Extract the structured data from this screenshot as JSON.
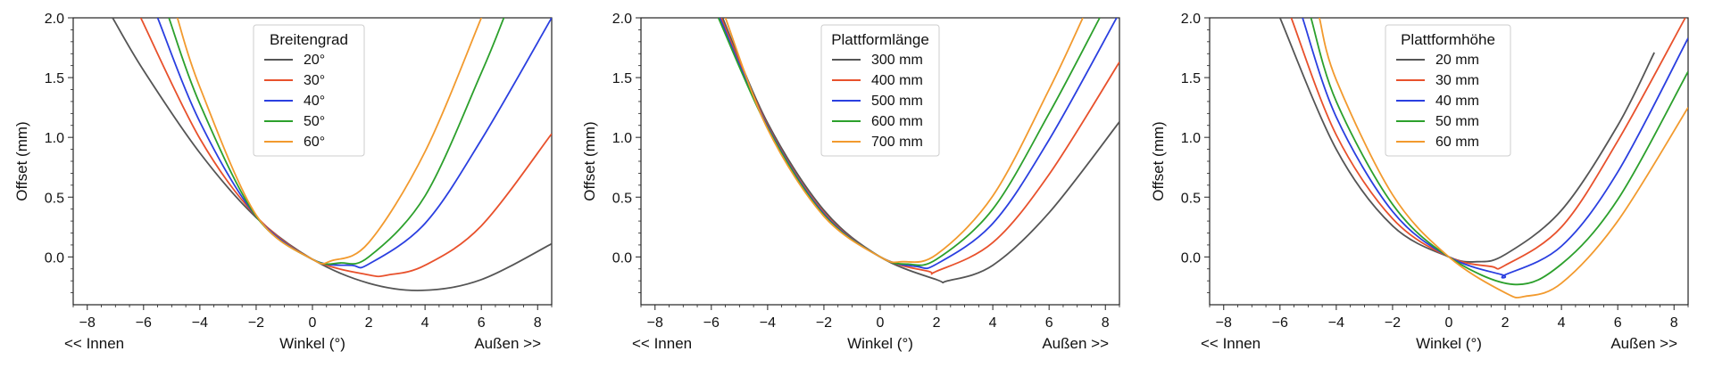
{
  "chart_data": [
    {
      "type": "line",
      "title": "",
      "xlabel": "Winkel (°)",
      "ylabel": "Offset (mm)",
      "x_left_note": "<< Innen",
      "x_right_note": "Außen >>",
      "xlim": [
        -8.5,
        8.5
      ],
      "ylim": [
        -0.4,
        2.0
      ],
      "xticks": [
        -8,
        -6,
        -4,
        -2,
        0,
        2,
        4,
        6,
        8
      ],
      "yticks": [
        0.0,
        0.5,
        1.0,
        1.5,
        2.0
      ],
      "xtick_labels": [
        "−8",
        "−6",
        "−4",
        "−2",
        "0",
        "2",
        "4",
        "6",
        "8"
      ],
      "ytick_labels": [
        "0.0",
        "0.5",
        "1.0",
        "1.5",
        "2.0"
      ],
      "legend_title": "Breitengrad",
      "legend_position": "top-center",
      "series": [
        {
          "name": "20°",
          "color": "#555555",
          "x": [
            -7.1,
            -6,
            -4,
            -2,
            0,
            2,
            3.9,
            6,
            8.5
          ],
          "y": [
            2.0,
            1.56,
            0.87,
            0.33,
            -0.02,
            -0.22,
            -0.28,
            -0.19,
            0.11
          ]
        },
        {
          "name": "30°",
          "color": "#e8512c",
          "x": [
            -6.1,
            -4,
            -2,
            0,
            2,
            2.7,
            4,
            6,
            8.5
          ],
          "y": [
            2.0,
            0.99,
            0.34,
            -0.02,
            -0.15,
            -0.15,
            -0.07,
            0.26,
            1.03
          ]
        },
        {
          "name": "40°",
          "color": "#2a3fe0",
          "x": [
            -5.5,
            -4,
            -2,
            0,
            1.4,
            2,
            4,
            6,
            8.5
          ],
          "y": [
            2.0,
            1.13,
            0.34,
            -0.02,
            -0.07,
            -0.06,
            0.28,
            0.98,
            2.0
          ]
        },
        {
          "name": "50°",
          "color": "#2ca02c",
          "x": [
            -5.1,
            -4,
            -2,
            0,
            1.0,
            2,
            4,
            6,
            6.8
          ],
          "y": [
            2.0,
            1.28,
            0.34,
            -0.02,
            -0.05,
            0.0,
            0.51,
            1.54,
            2.0
          ]
        },
        {
          "name": "60°",
          "color": "#f29a2e",
          "x": [
            -4.8,
            -4,
            -2,
            0,
            0.7,
            2,
            4,
            6,
            6.0
          ],
          "y": [
            2.0,
            1.42,
            0.35,
            -0.02,
            -0.03,
            0.12,
            0.88,
            2.0,
            2.0
          ]
        }
      ]
    },
    {
      "type": "line",
      "title": "",
      "xlabel": "Winkel (°)",
      "ylabel": "Offset (mm)",
      "x_left_note": "<< Innen",
      "x_right_note": "Außen >>",
      "xlim": [
        -8.5,
        8.5
      ],
      "ylim": [
        -0.4,
        2.0
      ],
      "xticks": [
        -8,
        -6,
        -4,
        -2,
        0,
        2,
        4,
        6,
        8
      ],
      "yticks": [
        0.0,
        0.5,
        1.0,
        1.5,
        2.0
      ],
      "xtick_labels": [
        "−8",
        "−6",
        "−4",
        "−2",
        "0",
        "2",
        "4",
        "6",
        "8"
      ],
      "ytick_labels": [
        "0.0",
        "0.5",
        "1.0",
        "1.5",
        "2.0"
      ],
      "legend_title": "Plattformlänge",
      "legend_position": "top-center",
      "series": [
        {
          "name": "300 mm",
          "color": "#555555",
          "x": [
            -5.6,
            -4,
            -2,
            0,
            2,
            2.4,
            4,
            6,
            8.5
          ],
          "y": [
            2.0,
            1.12,
            0.39,
            0.0,
            -0.19,
            -0.2,
            -0.07,
            0.37,
            1.13
          ]
        },
        {
          "name": "400 mm",
          "color": "#e8512c",
          "x": [
            -5.65,
            -4,
            -2,
            0,
            1.7,
            2,
            4,
            6,
            8.5
          ],
          "y": [
            2.0,
            1.1,
            0.37,
            0.0,
            -0.12,
            -0.12,
            0.12,
            0.69,
            1.63
          ]
        },
        {
          "name": "500 mm",
          "color": "#2a3fe0",
          "x": [
            -5.7,
            -4,
            -2,
            0,
            1.3,
            2,
            4,
            6,
            8.4
          ],
          "y": [
            2.0,
            1.09,
            0.36,
            0.0,
            -0.08,
            -0.06,
            0.28,
            0.98,
            2.0
          ]
        },
        {
          "name": "600 mm",
          "color": "#2ca02c",
          "x": [
            -5.75,
            -4,
            -2,
            0,
            1.0,
            2,
            4,
            6,
            7.8
          ],
          "y": [
            2.0,
            1.08,
            0.35,
            0.0,
            -0.06,
            -0.02,
            0.4,
            1.2,
            2.0
          ]
        },
        {
          "name": "700 mm",
          "color": "#f29a2e",
          "x": [
            -5.5,
            -4,
            -2,
            0,
            0.8,
            2,
            4,
            6,
            7.2
          ],
          "y": [
            2.0,
            1.07,
            0.34,
            0.0,
            -0.04,
            0.02,
            0.51,
            1.4,
            2.0
          ]
        }
      ]
    },
    {
      "type": "line",
      "title": "",
      "xlabel": "Winkel (°)",
      "ylabel": "Offset (mm)",
      "x_left_note": "<< Innen",
      "x_right_note": "Außen >>",
      "xlim": [
        -8.5,
        8.5
      ],
      "ylim": [
        -0.4,
        2.0
      ],
      "xticks": [
        -8,
        -6,
        -4,
        -2,
        0,
        2,
        4,
        6,
        8
      ],
      "yticks": [
        0.0,
        0.5,
        1.0,
        1.5,
        2.0
      ],
      "xtick_labels": [
        "−8",
        "−6",
        "−4",
        "−2",
        "0",
        "2",
        "4",
        "6",
        "8"
      ],
      "ytick_labels": [
        "0.0",
        "0.5",
        "1.0",
        "1.5",
        "2.0"
      ],
      "legend_title": "Plattformhöhe",
      "legend_position": "top-center",
      "series": [
        {
          "name": "20 mm",
          "color": "#555555",
          "x": [
            -6.0,
            -4,
            -2,
            0,
            1.0,
            2,
            4,
            6,
            7.3
          ],
          "y": [
            2.0,
            0.9,
            0.26,
            0.0,
            -0.04,
            0.02,
            0.39,
            1.1,
            1.71
          ]
        },
        {
          "name": "30 mm",
          "color": "#e8512c",
          "x": [
            -5.6,
            -4,
            -2,
            0,
            1.5,
            2,
            4,
            6,
            8.4
          ],
          "y": [
            2.0,
            1.02,
            0.32,
            0.0,
            -0.08,
            -0.07,
            0.25,
            0.97,
            2.0
          ]
        },
        {
          "name": "40 mm",
          "color": "#2a3fe0",
          "x": [
            -5.2,
            -4,
            -2,
            0,
            1.9,
            2,
            4,
            6,
            8.5
          ],
          "y": [
            2.0,
            1.17,
            0.38,
            0.0,
            -0.15,
            -0.15,
            0.09,
            0.71,
            1.83
          ]
        },
        {
          "name": "50 mm",
          "color": "#2ca02c",
          "x": [
            -4.9,
            -4,
            -2,
            0,
            2.3,
            4,
            6,
            8.5
          ],
          "y": [
            2.0,
            1.3,
            0.44,
            0.0,
            -0.23,
            -0.06,
            0.48,
            1.55
          ]
        },
        {
          "name": "60 mm",
          "color": "#f29a2e",
          "x": [
            -4.6,
            -4,
            -2,
            0,
            2,
            2.7,
            4,
            6,
            8.5
          ],
          "y": [
            2.0,
            1.48,
            0.52,
            0.0,
            -0.3,
            -0.33,
            -0.22,
            0.3,
            1.25
          ]
        }
      ]
    }
  ]
}
